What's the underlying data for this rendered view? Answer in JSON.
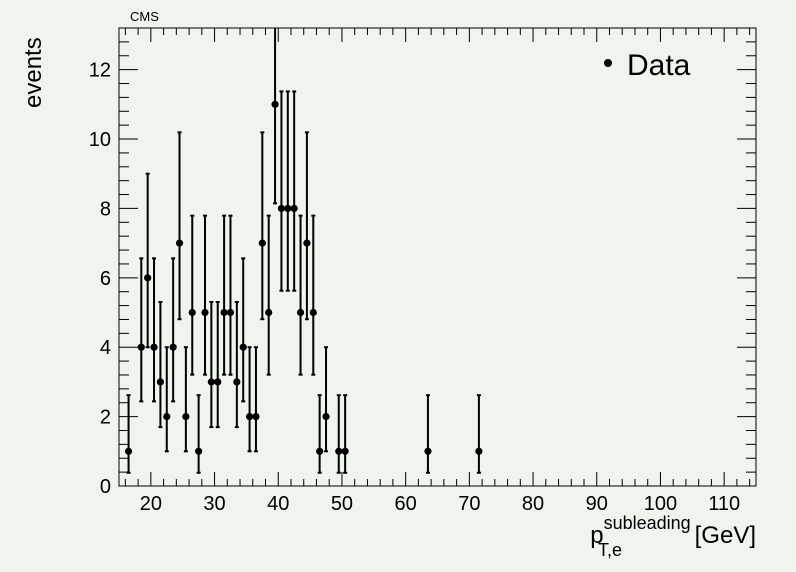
{
  "chart_data": {
    "type": "scatter",
    "title": "CMS",
    "xlabel": {
      "main": "p",
      "sub": "T,e",
      "sup": "subleading",
      "unit": "[GeV]"
    },
    "ylabel": "events",
    "xlim": [
      15,
      115
    ],
    "ylim": [
      0,
      13.2
    ],
    "x_ticks": [
      20,
      30,
      40,
      50,
      60,
      70,
      80,
      90,
      100,
      110
    ],
    "y_ticks": [
      0,
      2,
      4,
      6,
      8,
      10,
      12
    ],
    "legend": {
      "position": "top-right",
      "entries": [
        "Data"
      ]
    },
    "series": [
      {
        "name": "Data",
        "color": "#000000",
        "x": [
          16.5,
          18.5,
          19.5,
          20.5,
          21.5,
          22.5,
          23.5,
          24.5,
          25.5,
          26.5,
          27.5,
          28.5,
          29.5,
          30.5,
          31.5,
          32.5,
          33.5,
          34.5,
          35.5,
          36.5,
          37.5,
          38.5,
          39.5,
          40.5,
          41.5,
          42.5,
          43.5,
          44.5,
          45.5,
          46.5,
          47.5,
          49.5,
          50.5,
          63.5,
          71.5
        ],
        "y": [
          1,
          4,
          6,
          4,
          3,
          2,
          4,
          7,
          2,
          5,
          1,
          5,
          3,
          3,
          5,
          5,
          3,
          4,
          2,
          2,
          7,
          5,
          11,
          8,
          8,
          8,
          5,
          7,
          5,
          1,
          2,
          1,
          1,
          1,
          1
        ]
      }
    ]
  }
}
